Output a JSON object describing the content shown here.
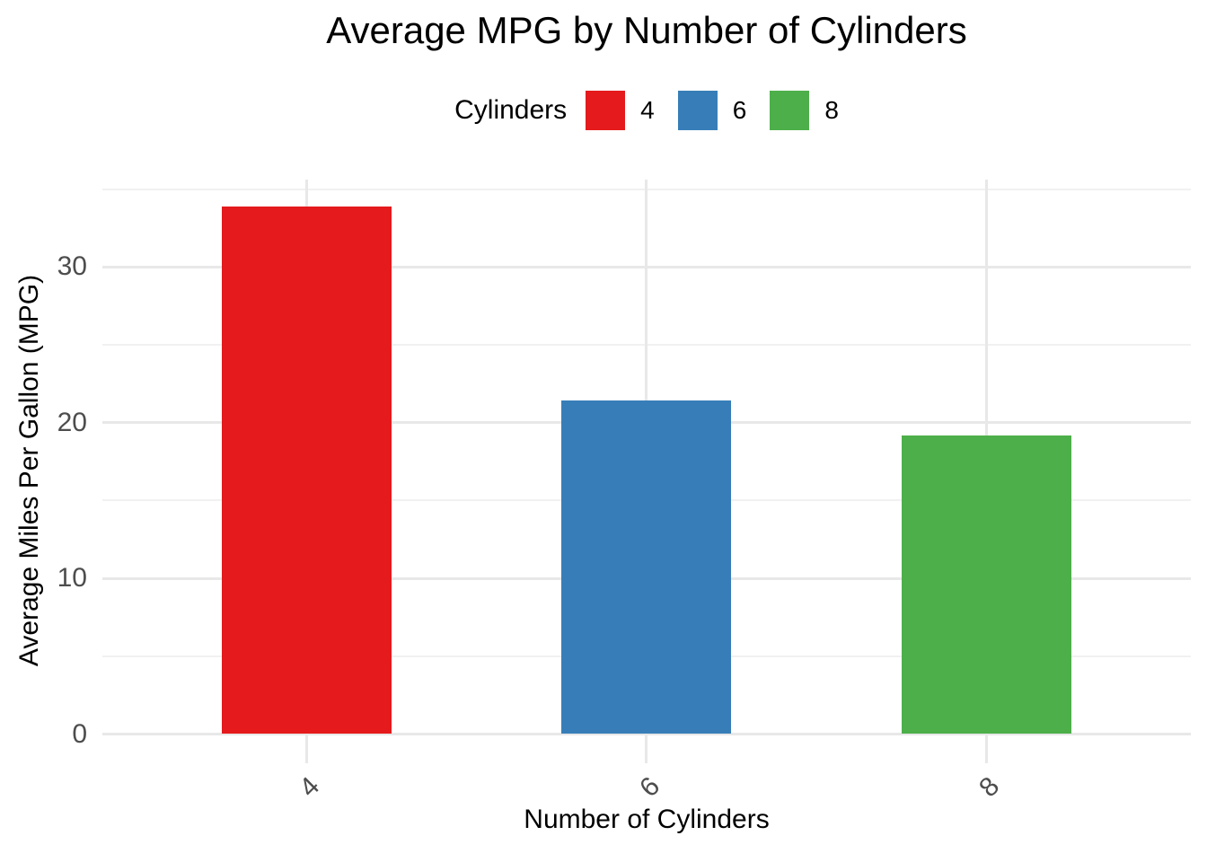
{
  "title": "Average MPG by Number of Cylinders",
  "legend": {
    "title": "Cylinders",
    "position": "top-center",
    "items": [
      {
        "label": "4",
        "color": "#E41A1C"
      },
      {
        "label": "6",
        "color": "#377EB8"
      },
      {
        "label": "8",
        "color": "#4DAF4A"
      }
    ]
  },
  "chart_data": {
    "type": "bar",
    "title": "Average MPG by Number of Cylinders",
    "categories": [
      "4",
      "6",
      "8"
    ],
    "values": [
      33.9,
      21.4,
      19.2
    ],
    "bar_colors": [
      "#E41A1C",
      "#377EB8",
      "#4DAF4A"
    ],
    "xlabel": "Number of Cylinders",
    "ylabel": "Average Miles Per Gallon (MPG)",
    "ylim": [
      0,
      35.6
    ],
    "yticks_major": [
      0,
      10,
      20,
      30
    ],
    "yticks_minor": [
      5,
      15,
      25,
      35
    ],
    "ytick_labels": [
      "0",
      "10",
      "20",
      "30"
    ],
    "xtick_labels": [
      "4",
      "6",
      "8"
    ],
    "xtick_angle_deg": 45,
    "grid": "major-and-minor",
    "legend_position": "top-center",
    "bar_relative_width": 0.5
  },
  "style": {
    "background": "#FFFFFF",
    "grid_major_color": "#E8E8E8",
    "grid_minor_color": "#F1F1F1",
    "tick_label_color": "#4D4D4D",
    "title_color": "#000000",
    "axis_title_color": "#000000"
  }
}
